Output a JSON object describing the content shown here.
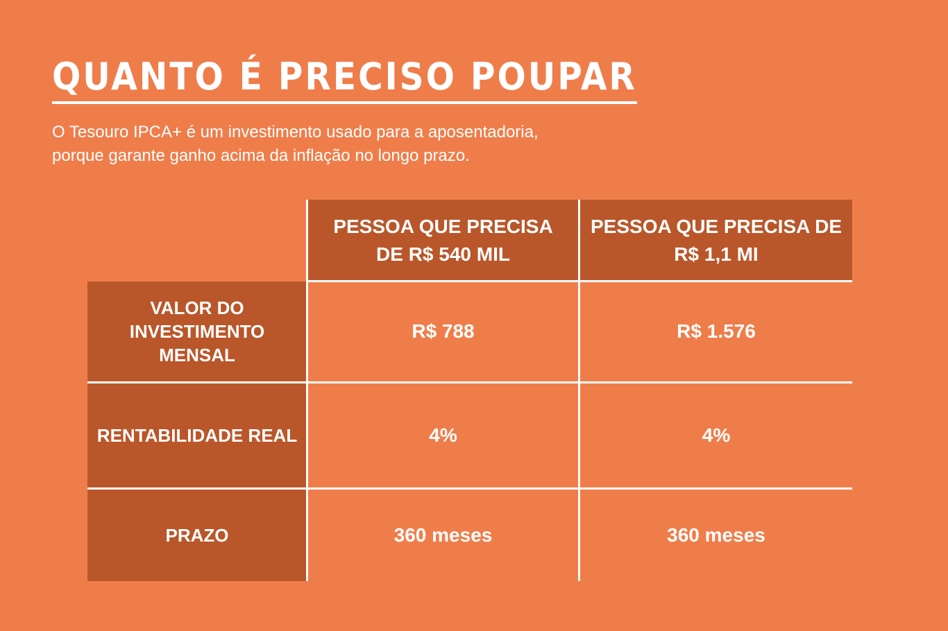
{
  "title": "QUANTO É PRECISO POUPAR",
  "subtitle": {
    "line1": "O Tesouro IPCA+ é um investimento usado para a aposentadoria,",
    "line2": "porque garante ganho acima da inflação no longo prazo."
  },
  "table": {
    "columns": [
      "PESSOA QUE PRECISA\nDE R$ 540 MIL",
      "PESSOA QUE PRECISA DE\nR$ 1,1 MI"
    ],
    "rows": [
      {
        "label": "VALOR DO\nINVESTIMENTO\nMENSAL",
        "values": [
          "R$ 788",
          "R$ 1.576"
        ]
      },
      {
        "label": "RENTABILIDADE REAL",
        "values": [
          "4%",
          "4%"
        ]
      },
      {
        "label": "PRAZO",
        "values": [
          "360 meses",
          "360 meses"
        ]
      }
    ]
  },
  "colors": {
    "background": "#ef7d4a",
    "header_fill": "#b9572a",
    "text": "#ffffff"
  }
}
